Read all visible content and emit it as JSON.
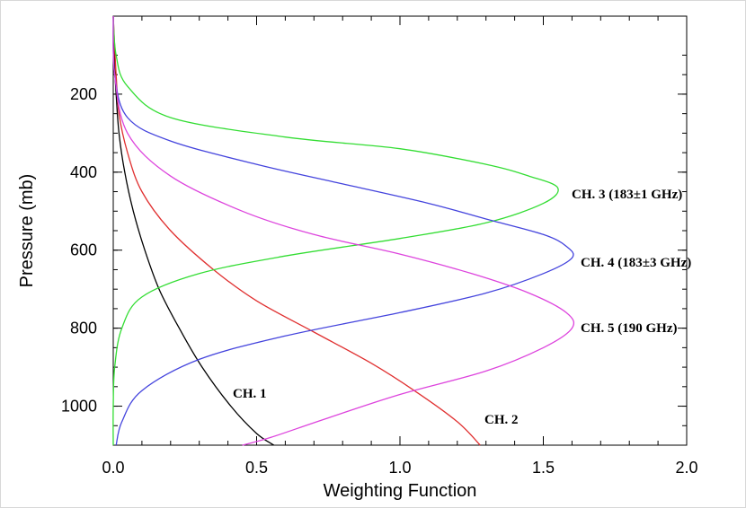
{
  "chart_data": {
    "type": "line",
    "xlabel": "Weighting Function",
    "ylabel": "Pressure (mb)",
    "xlim": [
      0.0,
      2.0
    ],
    "ylim": [
      1100,
      0
    ],
    "x_ticks": [
      "0.0",
      "0.5",
      "1.0",
      "1.5",
      "2.0"
    ],
    "y_ticks": [
      "200",
      "400",
      "600",
      "800",
      "1000"
    ],
    "grid": false,
    "series": [
      {
        "name": "CH. 1",
        "color": "#000000",
        "points": [
          [
            0.0,
            0
          ],
          [
            0.003,
            100
          ],
          [
            0.01,
            200
          ],
          [
            0.02,
            300
          ],
          [
            0.04,
            400
          ],
          [
            0.07,
            500
          ],
          [
            0.11,
            600
          ],
          [
            0.16,
            700
          ],
          [
            0.23,
            800
          ],
          [
            0.31,
            900
          ],
          [
            0.41,
            1000
          ],
          [
            0.5,
            1070
          ],
          [
            0.56,
            1100
          ]
        ]
      },
      {
        "name": "CH. 2",
        "color": "#e03030",
        "points": [
          [
            0.0,
            0
          ],
          [
            0.01,
            150
          ],
          [
            0.02,
            250
          ],
          [
            0.05,
            350
          ],
          [
            0.1,
            450
          ],
          [
            0.2,
            550
          ],
          [
            0.35,
            650
          ],
          [
            0.5,
            730
          ],
          [
            0.7,
            810
          ],
          [
            0.9,
            890
          ],
          [
            1.05,
            960
          ],
          [
            1.2,
            1040
          ],
          [
            1.28,
            1100
          ]
        ]
      },
      {
        "name": "CH. 3 (183±1 GHz)",
        "color": "#33dd33",
        "points": [
          [
            0.0,
            0
          ],
          [
            0.01,
            100
          ],
          [
            0.05,
            180
          ],
          [
            0.2,
            260
          ],
          [
            0.6,
            310
          ],
          [
            1.0,
            340
          ],
          [
            1.3,
            380
          ],
          [
            1.45,
            410
          ],
          [
            1.55,
            440
          ],
          [
            1.5,
            480
          ],
          [
            1.3,
            530
          ],
          [
            1.0,
            570
          ],
          [
            0.6,
            615
          ],
          [
            0.3,
            660
          ],
          [
            0.1,
            720
          ],
          [
            0.03,
            800
          ],
          [
            0.005,
            900
          ],
          [
            0.0,
            1000
          ],
          [
            0.0,
            1100
          ]
        ]
      },
      {
        "name": "CH. 4 (183±3 GHz)",
        "color": "#4444dd",
        "points": [
          [
            0.0,
            0
          ],
          [
            0.005,
            150
          ],
          [
            0.05,
            260
          ],
          [
            0.2,
            320
          ],
          [
            0.5,
            380
          ],
          [
            0.8,
            430
          ],
          [
            1.1,
            480
          ],
          [
            1.3,
            520
          ],
          [
            1.5,
            560
          ],
          [
            1.58,
            590
          ],
          [
            1.6,
            620
          ],
          [
            1.5,
            660
          ],
          [
            1.3,
            710
          ],
          [
            1.0,
            760
          ],
          [
            0.6,
            820
          ],
          [
            0.3,
            880
          ],
          [
            0.1,
            960
          ],
          [
            0.03,
            1040
          ],
          [
            0.01,
            1100
          ]
        ]
      },
      {
        "name": "CH. 5 (190 GHz)",
        "color": "#dd44dd",
        "points": [
          [
            0.0,
            0
          ],
          [
            0.005,
            150
          ],
          [
            0.05,
            300
          ],
          [
            0.2,
            410
          ],
          [
            0.45,
            500
          ],
          [
            0.7,
            560
          ],
          [
            1.0,
            610
          ],
          [
            1.25,
            660
          ],
          [
            1.45,
            710
          ],
          [
            1.58,
            760
          ],
          [
            1.6,
            800
          ],
          [
            1.5,
            850
          ],
          [
            1.3,
            910
          ],
          [
            1.0,
            970
          ],
          [
            0.75,
            1030
          ],
          [
            0.55,
            1080
          ],
          [
            0.45,
            1100
          ]
        ]
      }
    ],
    "annotations": [
      {
        "text": "CH. 3 (183±1 GHz)",
        "color": "#33dd99"
      },
      {
        "text": "CH. 4 (183±3 GHz)",
        "color": "#4455dd"
      },
      {
        "text": "CH. 5 (190 GHz)",
        "color": "#dd55dd"
      },
      {
        "text": "CH. 1",
        "color": "#000000"
      },
      {
        "text": "CH. 2",
        "color": "#e03030"
      }
    ]
  }
}
